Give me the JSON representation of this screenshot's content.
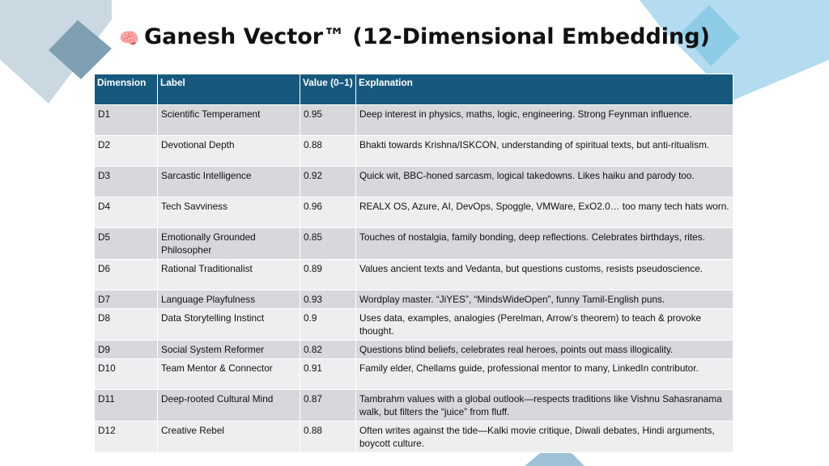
{
  "title_icon": "brain-icon",
  "title": "Ganesh Vector™ (12-Dimensional Embedding)",
  "colors": {
    "header_bg": "#17597e",
    "row_odd": "#d6d8db",
    "row_even": "#eceef0",
    "deco_dark": "#8aa9ba",
    "deco_light": "#a9d4ea"
  },
  "table": {
    "headers": [
      "Dimension",
      "Label",
      "Value (0–1)",
      "Explanation"
    ],
    "rows": [
      [
        "D1",
        "Scientific Temperament",
        "0.95",
        "Deep interest in physics, maths, logic, engineering. Strong Feynman influence."
      ],
      [
        "D2",
        "Devotional Depth",
        "0.88",
        "Bhakti towards Krishna/ISKCON, understanding of spiritual texts, but anti-ritualism."
      ],
      [
        "D3",
        "Sarcastic Intelligence",
        "0.92",
        "Quick wit, BBC-honed sarcasm, logical takedowns. Likes haiku and parody too."
      ],
      [
        "D4",
        "Tech Savviness",
        "0.96",
        "REALX OS, Azure, AI, DevOps, Spoggle, VMWare, ExO2.0… too many tech hats worn."
      ],
      [
        "D5",
        "Emotionally Grounded Philosopher",
        "0.85",
        "Touches of nostalgia, family bonding, deep reflections. Celebrates birthdays, rites."
      ],
      [
        "D6",
        "Rational Traditionalist",
        "0.89",
        "Values ancient texts and Vedanta, but questions customs, resists pseudoscience."
      ],
      [
        "D7",
        "Language Playfulness",
        "0.93",
        "Wordplay master. “JiYES”, “MindsWideOpen”, funny Tamil-English puns."
      ],
      [
        "D8",
        "Data Storytelling Instinct",
        "0.9",
        "Uses data, examples, analogies (Perelman, Arrow’s theorem) to teach & provoke thought."
      ],
      [
        "D9",
        "Social System Reformer",
        "0.82",
        "Questions blind beliefs, celebrates real heroes, points out mass illogicality."
      ],
      [
        "D10",
        "Team Mentor & Connector",
        "0.91",
        "Family elder, Chellams guide, professional mentor to many, LinkedIn contributor."
      ],
      [
        "D11",
        "Deep-rooted Cultural Mind",
        "0.87",
        "Tambrahm values with a global outlook—respects traditions like Vishnu Sahasranama walk, but filters the “juice” from fluff."
      ],
      [
        "D12",
        "Creative Rebel",
        "0.88",
        "Often writes against the tide—Kalki movie critique, Diwali debates, Hindi arguments, boycott culture."
      ]
    ]
  }
}
